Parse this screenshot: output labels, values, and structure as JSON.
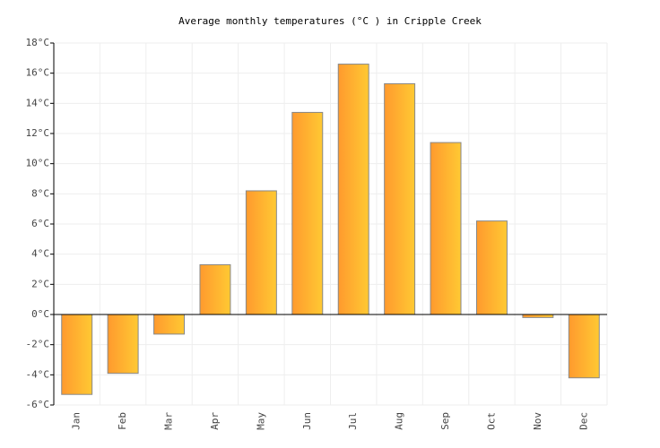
{
  "chart_data": {
    "type": "bar",
    "title": "Average monthly temperatures (°C ) in Cripple Creek",
    "categories": [
      "Jan",
      "Feb",
      "Mar",
      "Apr",
      "May",
      "Jun",
      "Jul",
      "Aug",
      "Sep",
      "Oct",
      "Nov",
      "Dec"
    ],
    "values": [
      -5.3,
      -3.9,
      -1.3,
      3.3,
      8.2,
      13.4,
      16.6,
      15.3,
      11.4,
      6.2,
      -0.2,
      -4.2
    ],
    "colors": [
      "#ff9a2e",
      "#ffc933"
    ],
    "ylim": [
      -6,
      18
    ],
    "yticks": [
      {
        "value": -6,
        "label": "-6°C"
      },
      {
        "value": -4,
        "label": "-4°C"
      },
      {
        "value": -2,
        "label": "-2°C"
      },
      {
        "value": 0,
        "label": "0°C"
      },
      {
        "value": 2,
        "label": "2°C"
      },
      {
        "value": 4,
        "label": "4°C"
      },
      {
        "value": 6,
        "label": "6°C"
      },
      {
        "value": 8,
        "label": "8°C"
      },
      {
        "value": 10,
        "label": "10°C"
      },
      {
        "value": 12,
        "label": "12°C"
      },
      {
        "value": 14,
        "label": "14°C"
      },
      {
        "value": 16,
        "label": "16°C"
      },
      {
        "value": 18,
        "label": "18°C"
      }
    ],
    "grid": true
  }
}
